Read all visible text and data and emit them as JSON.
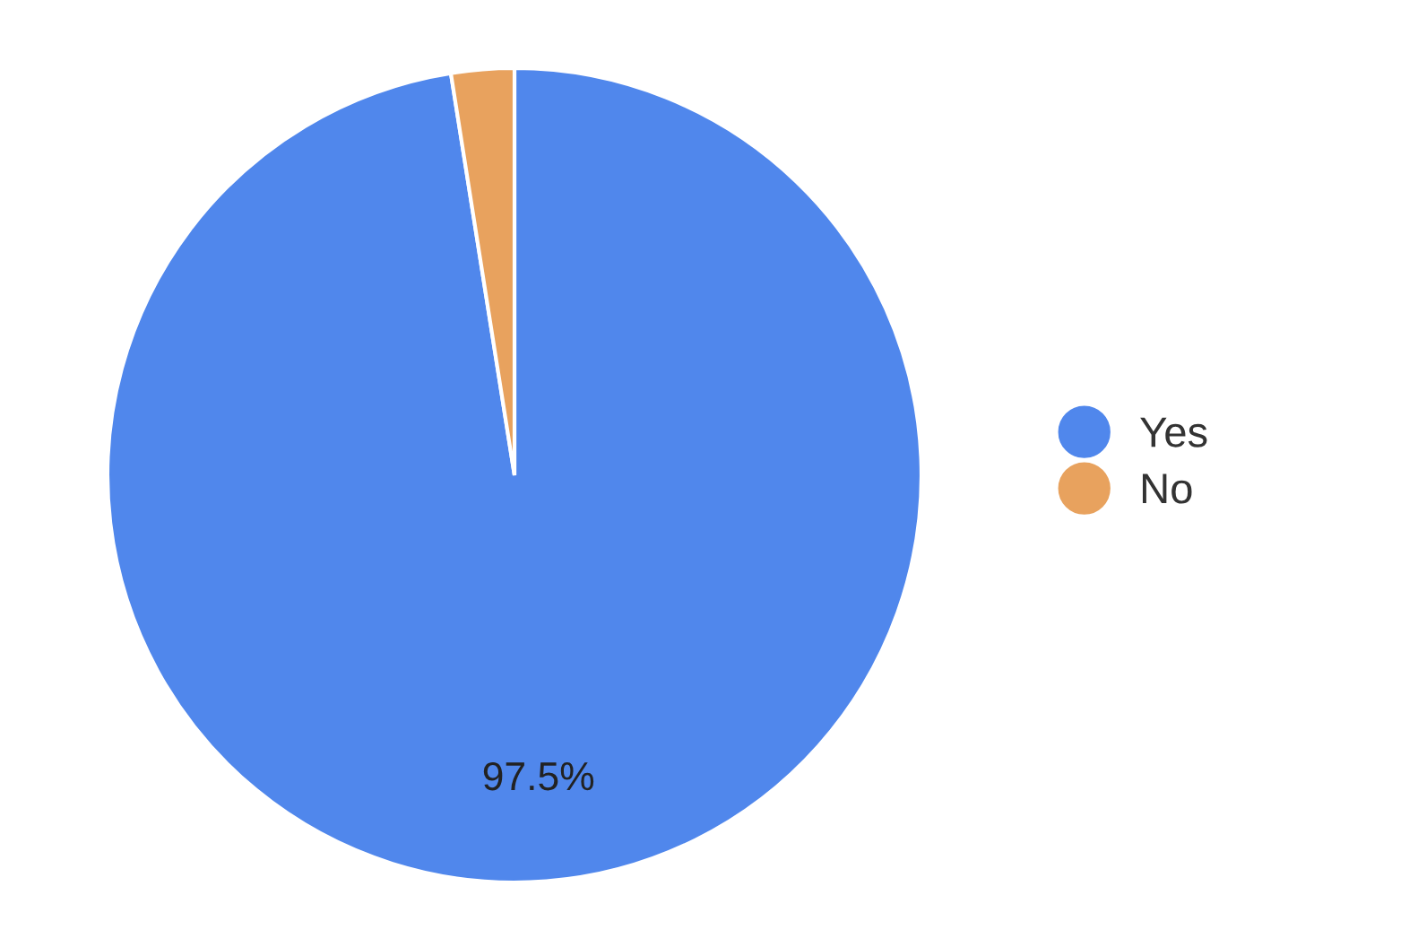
{
  "chart_data": {
    "type": "pie",
    "categories": [
      "Yes",
      "No"
    ],
    "values": [
      97.5,
      2.5
    ],
    "colors": [
      "#5087ec",
      "#e8a25e"
    ],
    "value_labels": [
      "97.5%",
      null
    ],
    "legend": "right"
  }
}
